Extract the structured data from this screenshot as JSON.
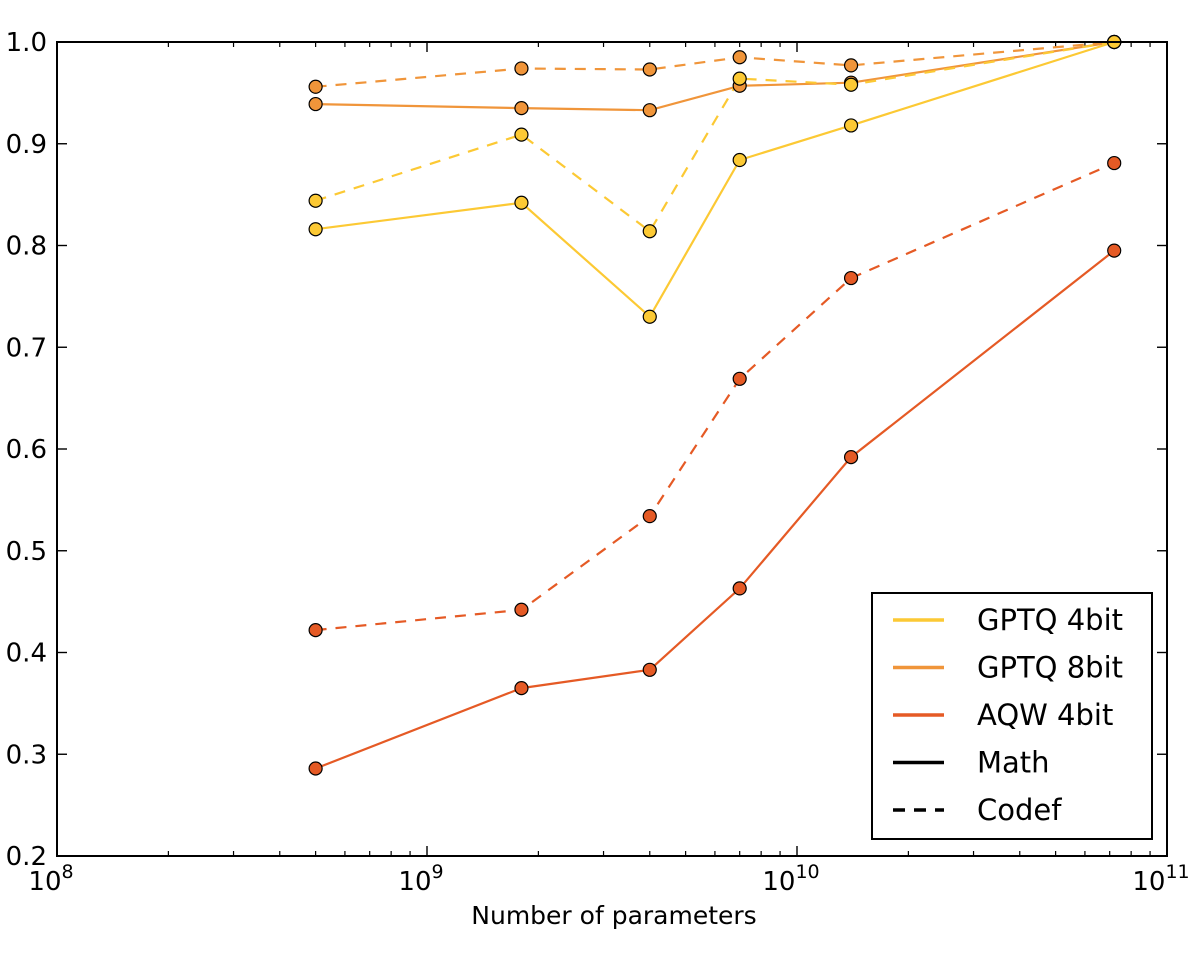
{
  "chart_data": {
    "type": "line",
    "xscale": "log",
    "xlabel": "Number of parameters",
    "ylabel": "",
    "xlim": [
      100000000,
      100000000000
    ],
    "ylim": [
      0.2,
      1.0
    ],
    "x_ticks": [
      {
        "value": 100000000,
        "base": "10",
        "exp": "8"
      },
      {
        "value": 1000000000,
        "base": "10",
        "exp": "9"
      },
      {
        "value": 10000000000,
        "base": "10",
        "exp": "10"
      },
      {
        "value": 100000000000,
        "base": "10",
        "exp": "11"
      }
    ],
    "y_ticks": [
      {
        "value": 0.2,
        "label": "0.2"
      },
      {
        "value": 0.3,
        "label": "0.3"
      },
      {
        "value": 0.4,
        "label": "0.4"
      },
      {
        "value": 0.5,
        "label": "0.5"
      },
      {
        "value": 0.6,
        "label": "0.6"
      },
      {
        "value": 0.7,
        "label": "0.7"
      },
      {
        "value": 0.8,
        "label": "0.8"
      },
      {
        "value": 0.9,
        "label": "0.9"
      },
      {
        "value": 1.0,
        "label": "1.0"
      }
    ],
    "x": [
      500000000,
      1800000000,
      4000000000,
      7000000000,
      14000000000,
      72000000000
    ],
    "series": [
      {
        "name": "GPTQ 8bit Codef",
        "method": "GPTQ 8bit",
        "task": "Codef",
        "color": "#f0953a",
        "dash": true,
        "values": [
          0.956,
          0.974,
          0.973,
          0.985,
          0.977,
          1.0
        ]
      },
      {
        "name": "GPTQ 8bit Math",
        "method": "GPTQ 8bit",
        "task": "Math",
        "color": "#f0953a",
        "dash": false,
        "values": [
          0.939,
          0.935,
          0.933,
          0.957,
          0.96,
          1.0
        ]
      },
      {
        "name": "GPTQ 4bit Codef",
        "method": "GPTQ 4bit",
        "task": "Codef",
        "color": "#fcc934",
        "dash": true,
        "values": [
          0.844,
          0.909,
          0.814,
          0.964,
          0.958,
          1.0
        ]
      },
      {
        "name": "GPTQ 4bit Math",
        "method": "GPTQ 4bit",
        "task": "Math",
        "color": "#fcc934",
        "dash": false,
        "values": [
          0.816,
          0.842,
          0.73,
          0.884,
          0.918,
          1.0
        ]
      },
      {
        "name": "AQW 4bit Codef",
        "method": "AQW 4bit",
        "task": "Codef",
        "color": "#e55a25",
        "dash": true,
        "values": [
          0.422,
          0.442,
          0.534,
          0.669,
          0.768,
          0.881
        ]
      },
      {
        "name": "AQW 4bit Math",
        "method": "AQW 4bit",
        "task": "Math",
        "color": "#e55a25",
        "dash": false,
        "values": [
          0.286,
          0.365,
          0.383,
          0.463,
          0.592,
          0.795
        ]
      }
    ],
    "legend": {
      "position": "lower-right",
      "entries": [
        {
          "label": "GPTQ 4bit",
          "color": "#fcc934",
          "dash": false
        },
        {
          "label": "GPTQ 8bit",
          "color": "#f0953a",
          "dash": false
        },
        {
          "label": "AQW 4bit",
          "color": "#e55a25",
          "dash": false
        },
        {
          "label": "Math",
          "color": "#000000",
          "dash": false
        },
        {
          "label": "Codef",
          "color": "#000000",
          "dash": true
        }
      ]
    }
  }
}
